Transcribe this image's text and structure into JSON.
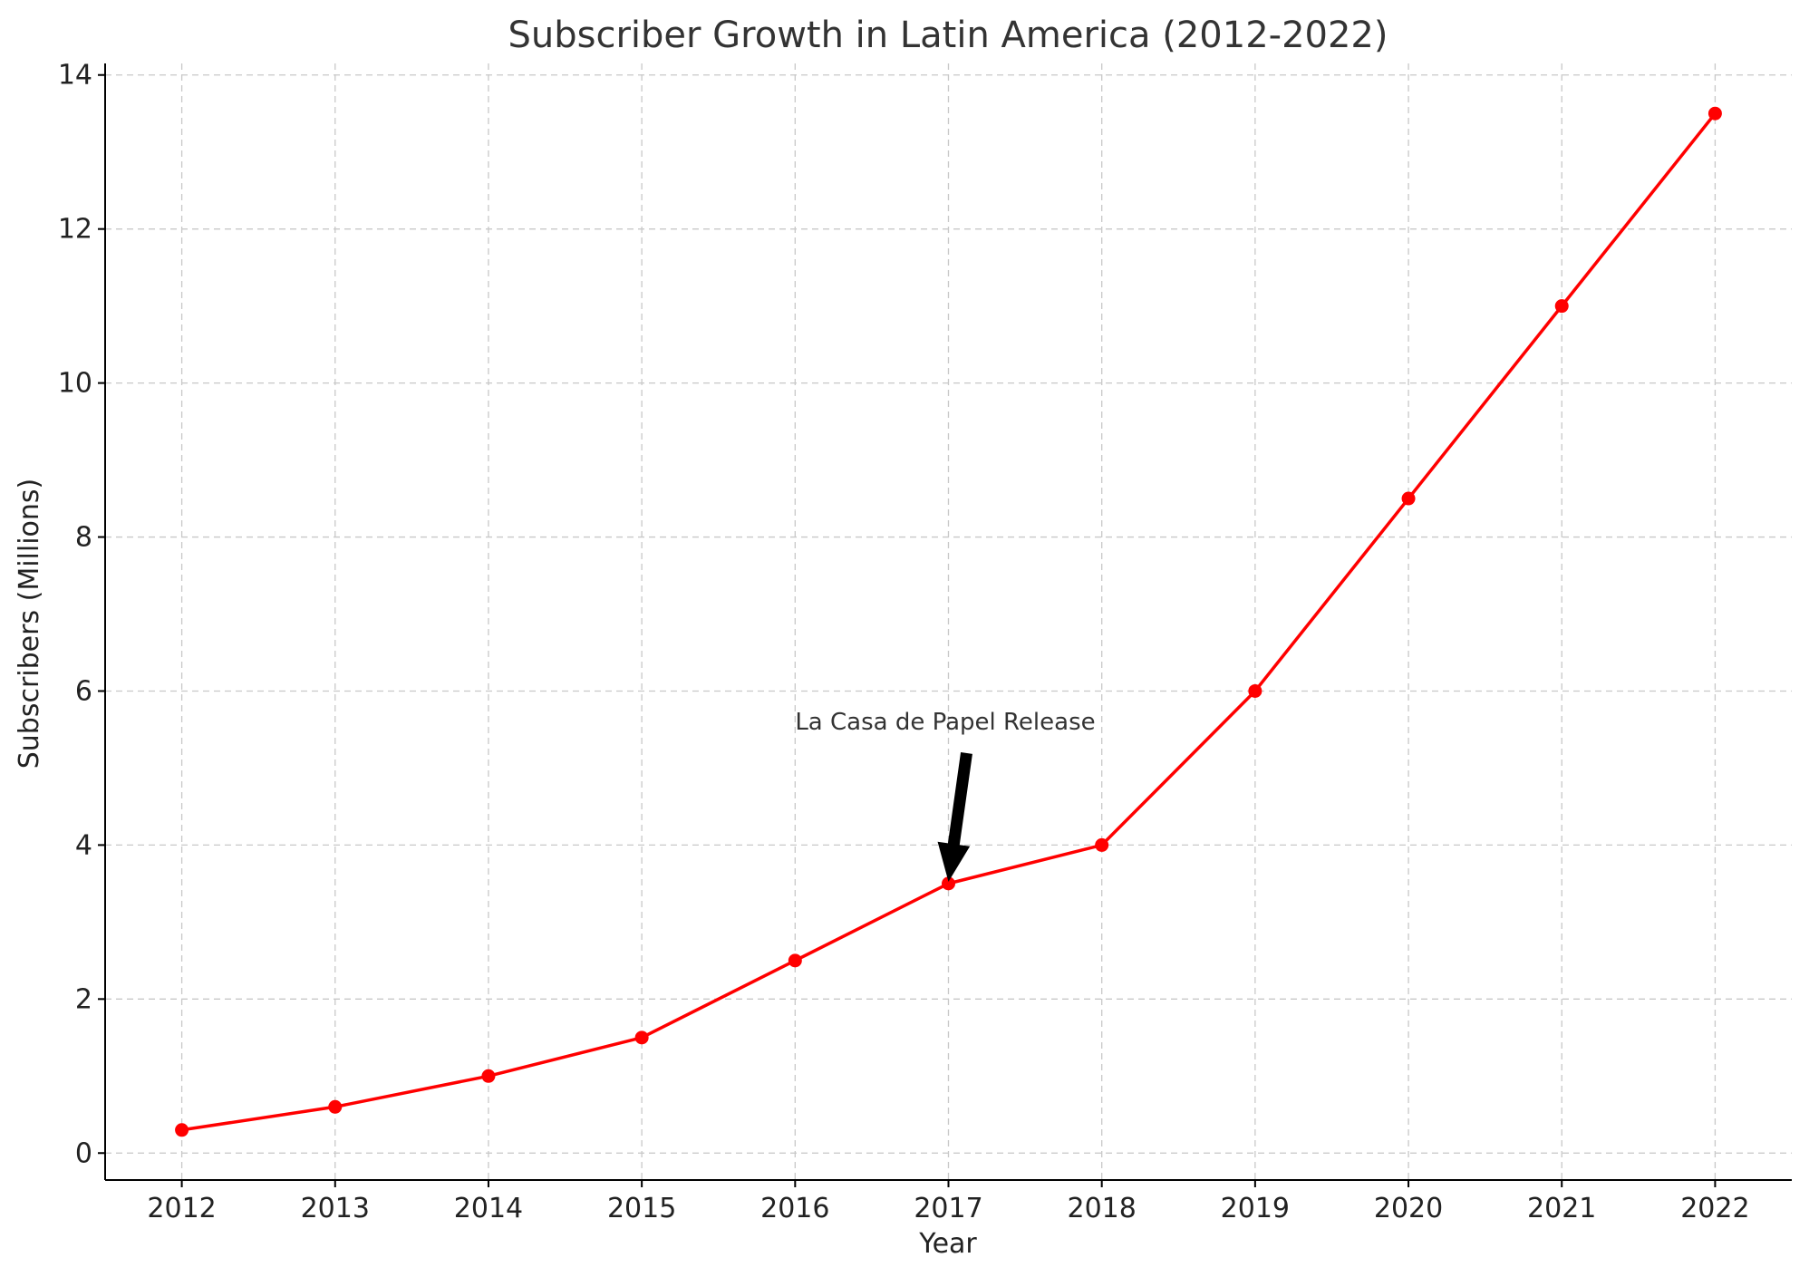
{
  "chart_data": {
    "type": "line",
    "title": "Subscriber Growth in Latin America (2012-2022)",
    "xlabel": "Year",
    "ylabel": "Subscribers (Millions)",
    "x": [
      2012,
      2013,
      2014,
      2015,
      2016,
      2017,
      2018,
      2019,
      2020,
      2021,
      2022
    ],
    "x_tick_labels": [
      "2012",
      "2013",
      "2014",
      "2015",
      "2016",
      "2017",
      "2018",
      "2019",
      "2020",
      "2021",
      "2022"
    ],
    "y_ticks": [
      0,
      2,
      4,
      6,
      8,
      10,
      12,
      14
    ],
    "y_tick_labels": [
      "0",
      "2",
      "4",
      "6",
      "8",
      "10",
      "12",
      "14"
    ],
    "xlim": [
      2011.5,
      2022.5
    ],
    "ylim": [
      -0.35,
      14.15
    ],
    "grid": true,
    "series": [
      {
        "color": "#ff0000",
        "marker": "circle",
        "values": [
          0.3,
          0.6,
          1.0,
          1.5,
          2.5,
          3.5,
          4.0,
          6.0,
          8.5,
          11.0,
          13.5
        ]
      }
    ],
    "annotations": [
      {
        "text": "La Casa de Papel Release",
        "point": {
          "x": 2017,
          "y": 3.5
        },
        "text_anchor_point": {
          "x": 2016,
          "y": 5.5
        },
        "arrow_color": "#000000"
      }
    ]
  }
}
